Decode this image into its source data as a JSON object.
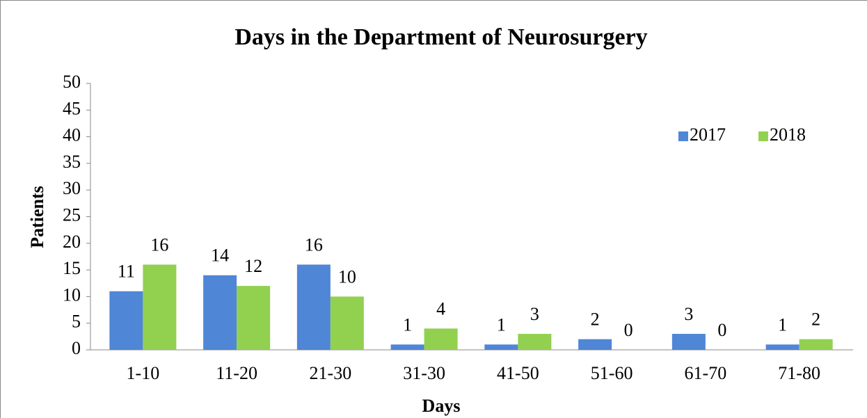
{
  "chart_data": {
    "type": "bar",
    "title": "Days in the Department of Neurosurgery",
    "xlabel": "Days",
    "ylabel": "Patients",
    "categories": [
      "1-10",
      "11-20",
      "21-30",
      "31-30",
      "41-50",
      "51-60",
      "61-70",
      "71-80"
    ],
    "series": [
      {
        "name": "2017",
        "color": "#4f86d6",
        "values": [
          11,
          14,
          16,
          1,
          1,
          2,
          3,
          1
        ]
      },
      {
        "name": "2018",
        "color": "#92d050",
        "values": [
          16,
          12,
          10,
          4,
          3,
          0,
          0,
          2
        ]
      }
    ],
    "ylim": [
      0,
      50
    ],
    "yticks": [
      0,
      5,
      10,
      15,
      20,
      25,
      30,
      35,
      40,
      45,
      50
    ],
    "grid": false,
    "legend": "upper right",
    "data_labels": true
  }
}
